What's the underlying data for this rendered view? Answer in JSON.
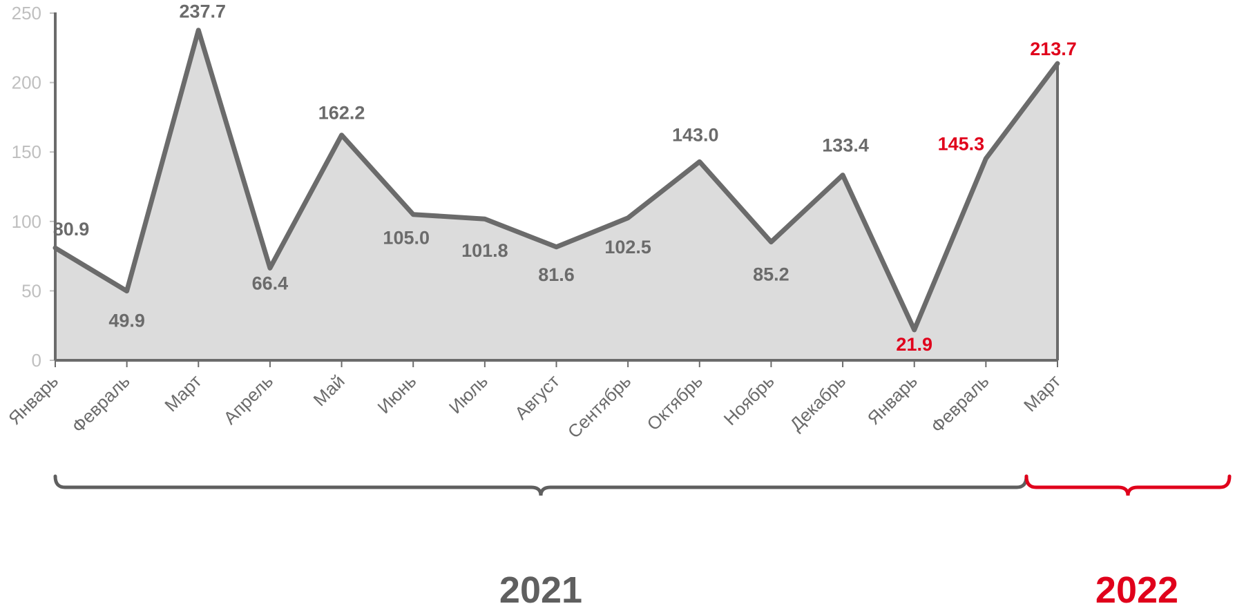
{
  "chart_data": {
    "type": "area",
    "categories": [
      "Январь",
      "Февраль",
      "Март",
      "Апрель",
      "Май",
      "Июнь",
      "Июль",
      "Август",
      "Сентябрь",
      "Октябрь",
      "Ноябрь",
      "Декабрь",
      "Январь",
      "Февраль",
      "Март"
    ],
    "values": [
      80.9,
      49.9,
      237.7,
      66.4,
      162.2,
      105.0,
      101.8,
      81.6,
      102.5,
      143.0,
      85.2,
      133.4,
      21.9,
      145.3,
      213.7
    ],
    "value_labels": [
      "80.9",
      "49.9",
      "237.7",
      "66.4",
      "162.2",
      "105.0",
      "101.8",
      "81.6",
      "102.5",
      "143.0",
      "85.2",
      "133.4",
      "21.9",
      "145.3",
      "213.7"
    ],
    "ylim": [
      0,
      250
    ],
    "yticks": [
      "0",
      "50",
      "100",
      "150",
      "200",
      "250"
    ],
    "grid": false,
    "year_groups": [
      {
        "label": "2021",
        "from": 0,
        "to": 11,
        "color": "#5f5f5f"
      },
      {
        "label": "2022",
        "from": 12,
        "to": 14,
        "color": "#e0001b"
      }
    ],
    "colors": {
      "line": "#6b6b6b",
      "fill": "#dcdcdc",
      "axis": "#6b6b6b",
      "label_2021": "#6b6b6b",
      "label_2022": "#e0001b"
    }
  }
}
